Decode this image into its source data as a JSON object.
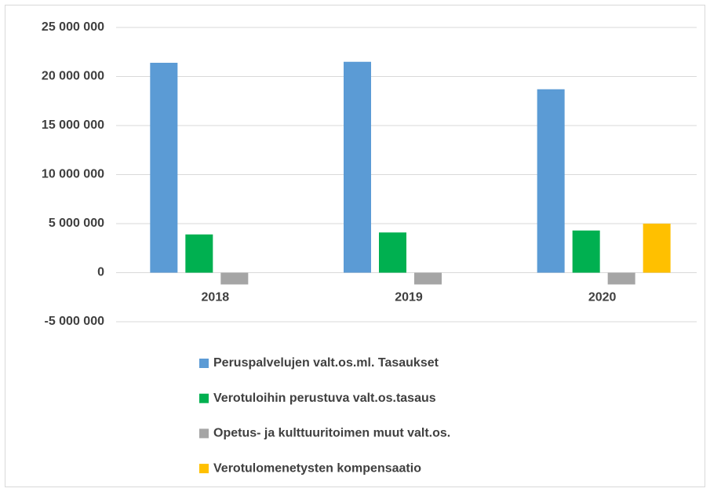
{
  "chart_data": {
    "type": "bar",
    "categories": [
      "2018",
      "2019",
      "2020"
    ],
    "series": [
      {
        "name": "Peruspalvelujen valt.os.ml. Tasaukset",
        "color": "#5b9bd5",
        "values": [
          21400000,
          21500000,
          18700000
        ]
      },
      {
        "name": "Verotuloihin perustuva valt.os.tasaus",
        "color": "#00b050",
        "values": [
          3900000,
          4100000,
          4300000
        ]
      },
      {
        "name": "Opetus- ja kulttuuritoimen muut valt.os.",
        "color": "#a5a5a5",
        "values": [
          -1200000,
          -1200000,
          -1200000
        ]
      },
      {
        "name": "Verotulomenetysten kompensaatio",
        "color": "#ffc000",
        "values": [
          null,
          null,
          5000000
        ]
      }
    ],
    "ylim": [
      -5000000,
      25000000
    ],
    "yticks": [
      {
        "value": -5000000,
        "label": "-5 000 000"
      },
      0,
      {
        "value": 5000000,
        "label": "5 000 000"
      },
      {
        "value": 10000000,
        "label": "10 000 000"
      },
      {
        "value": 15000000,
        "label": "15 000 000"
      },
      {
        "value": 20000000,
        "label": "20 000 000"
      },
      {
        "value": 25000000,
        "label": "25 000 000"
      }
    ],
    "grid": true,
    "legend": "bottom"
  }
}
